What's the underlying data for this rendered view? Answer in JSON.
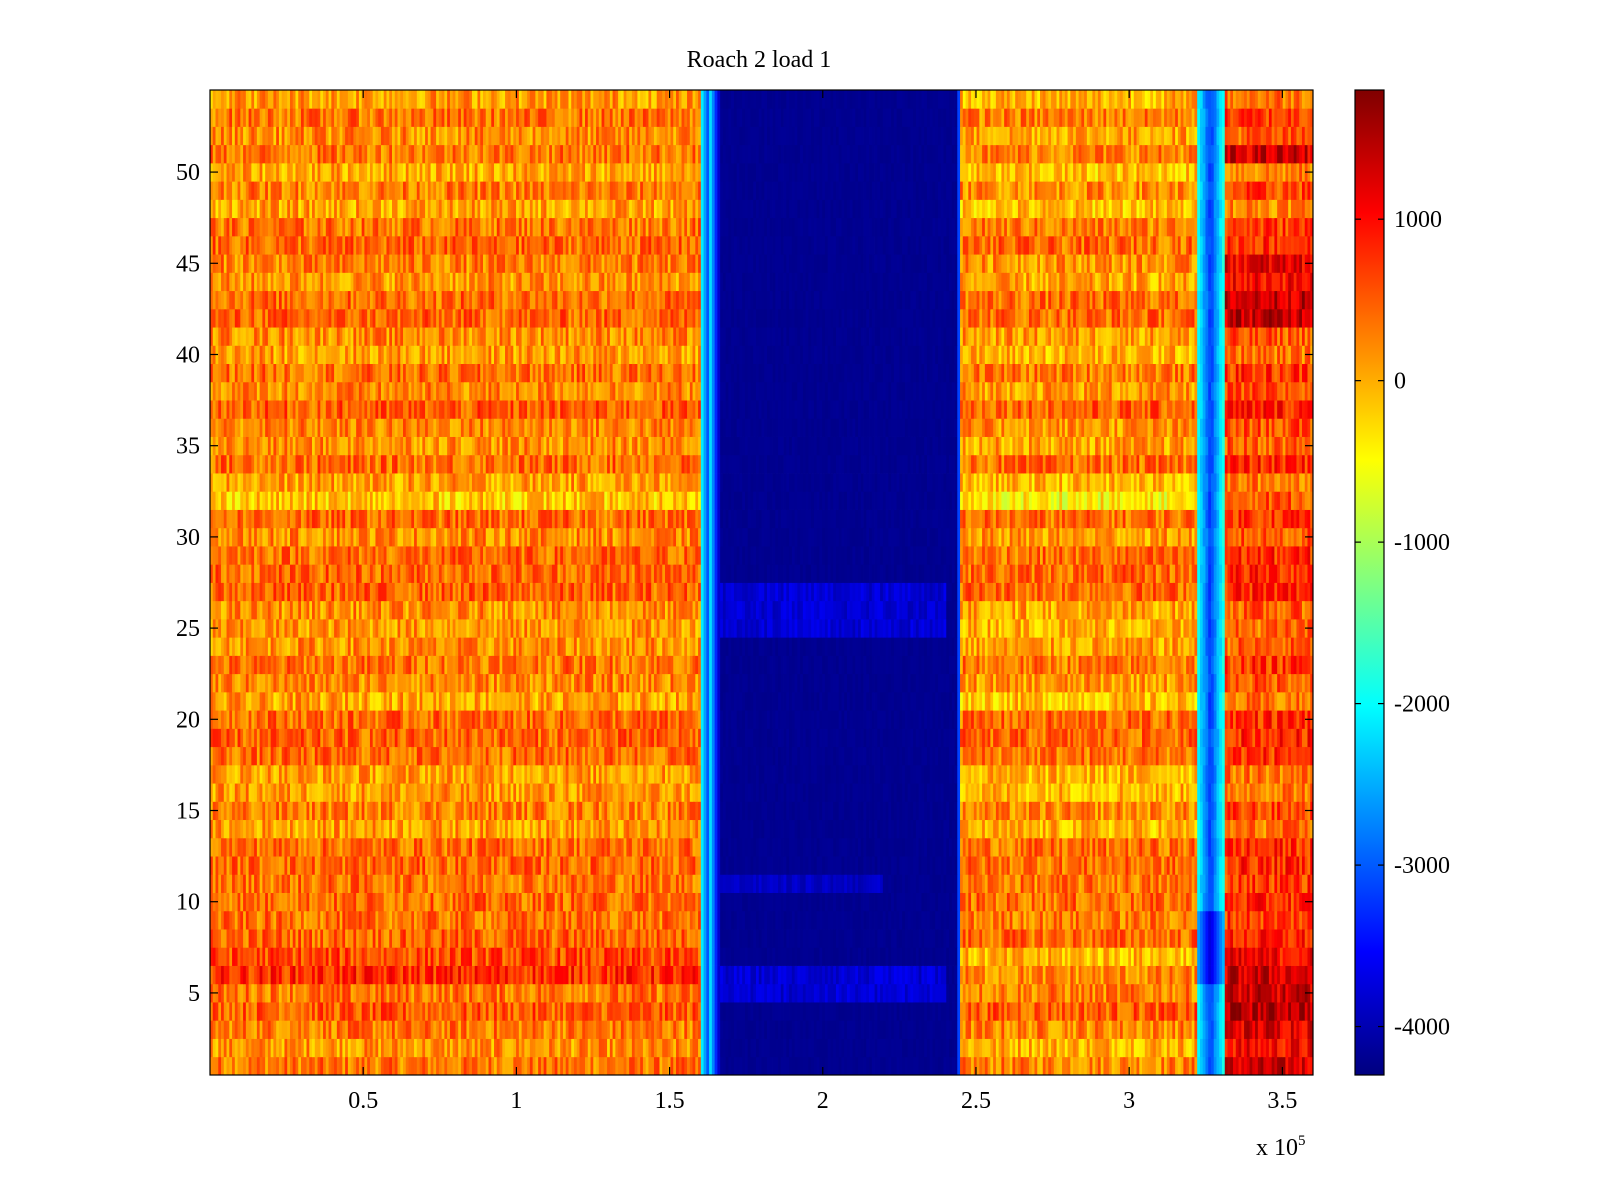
{
  "chart_data": {
    "type": "heatmap",
    "title": "Roach 2 load 1",
    "xlabel": "",
    "ylabel": "",
    "x_multiplier_label": "x 10",
    "x_multiplier_exponent": "5",
    "xlim": [
      0,
      360000
    ],
    "ylim": [
      0.5,
      54.5
    ],
    "x_ticks": [
      50000,
      100000,
      150000,
      200000,
      250000,
      300000,
      350000
    ],
    "x_tick_labels": [
      "0.5",
      "1",
      "1.5",
      "2",
      "2.5",
      "3",
      "3.5"
    ],
    "y_ticks": [
      5,
      10,
      15,
      20,
      25,
      30,
      35,
      40,
      45,
      50
    ],
    "y_tick_labels": [
      "5",
      "10",
      "15",
      "20",
      "25",
      "30",
      "35",
      "40",
      "45",
      "50"
    ],
    "colormap": "jet",
    "clim": [
      -4300,
      1800
    ],
    "colorbar_ticks": [
      1000,
      0,
      -1000,
      -2000,
      -3000,
      -4000
    ],
    "colorbar_tick_labels": [
      "1000",
      "0",
      "-1000",
      "-2000",
      "-3000",
      "-4000"
    ],
    "rows": 54,
    "regions": [
      {
        "x_range": [
          0,
          161000
        ],
        "value_approx": 300,
        "description": "background"
      },
      {
        "x_range": [
          163000,
          245000
        ],
        "value_approx": -4200,
        "description": "low band"
      },
      {
        "x_range": [
          245000,
          322000
        ],
        "value_approx": 200,
        "description": "background"
      },
      {
        "x_range": [
          322000,
          331000
        ],
        "value_approx": -3000,
        "description": "narrow low band"
      },
      {
        "x_range": [
          331000,
          360000
        ],
        "value_approx": 600,
        "description": "background"
      }
    ]
  }
}
